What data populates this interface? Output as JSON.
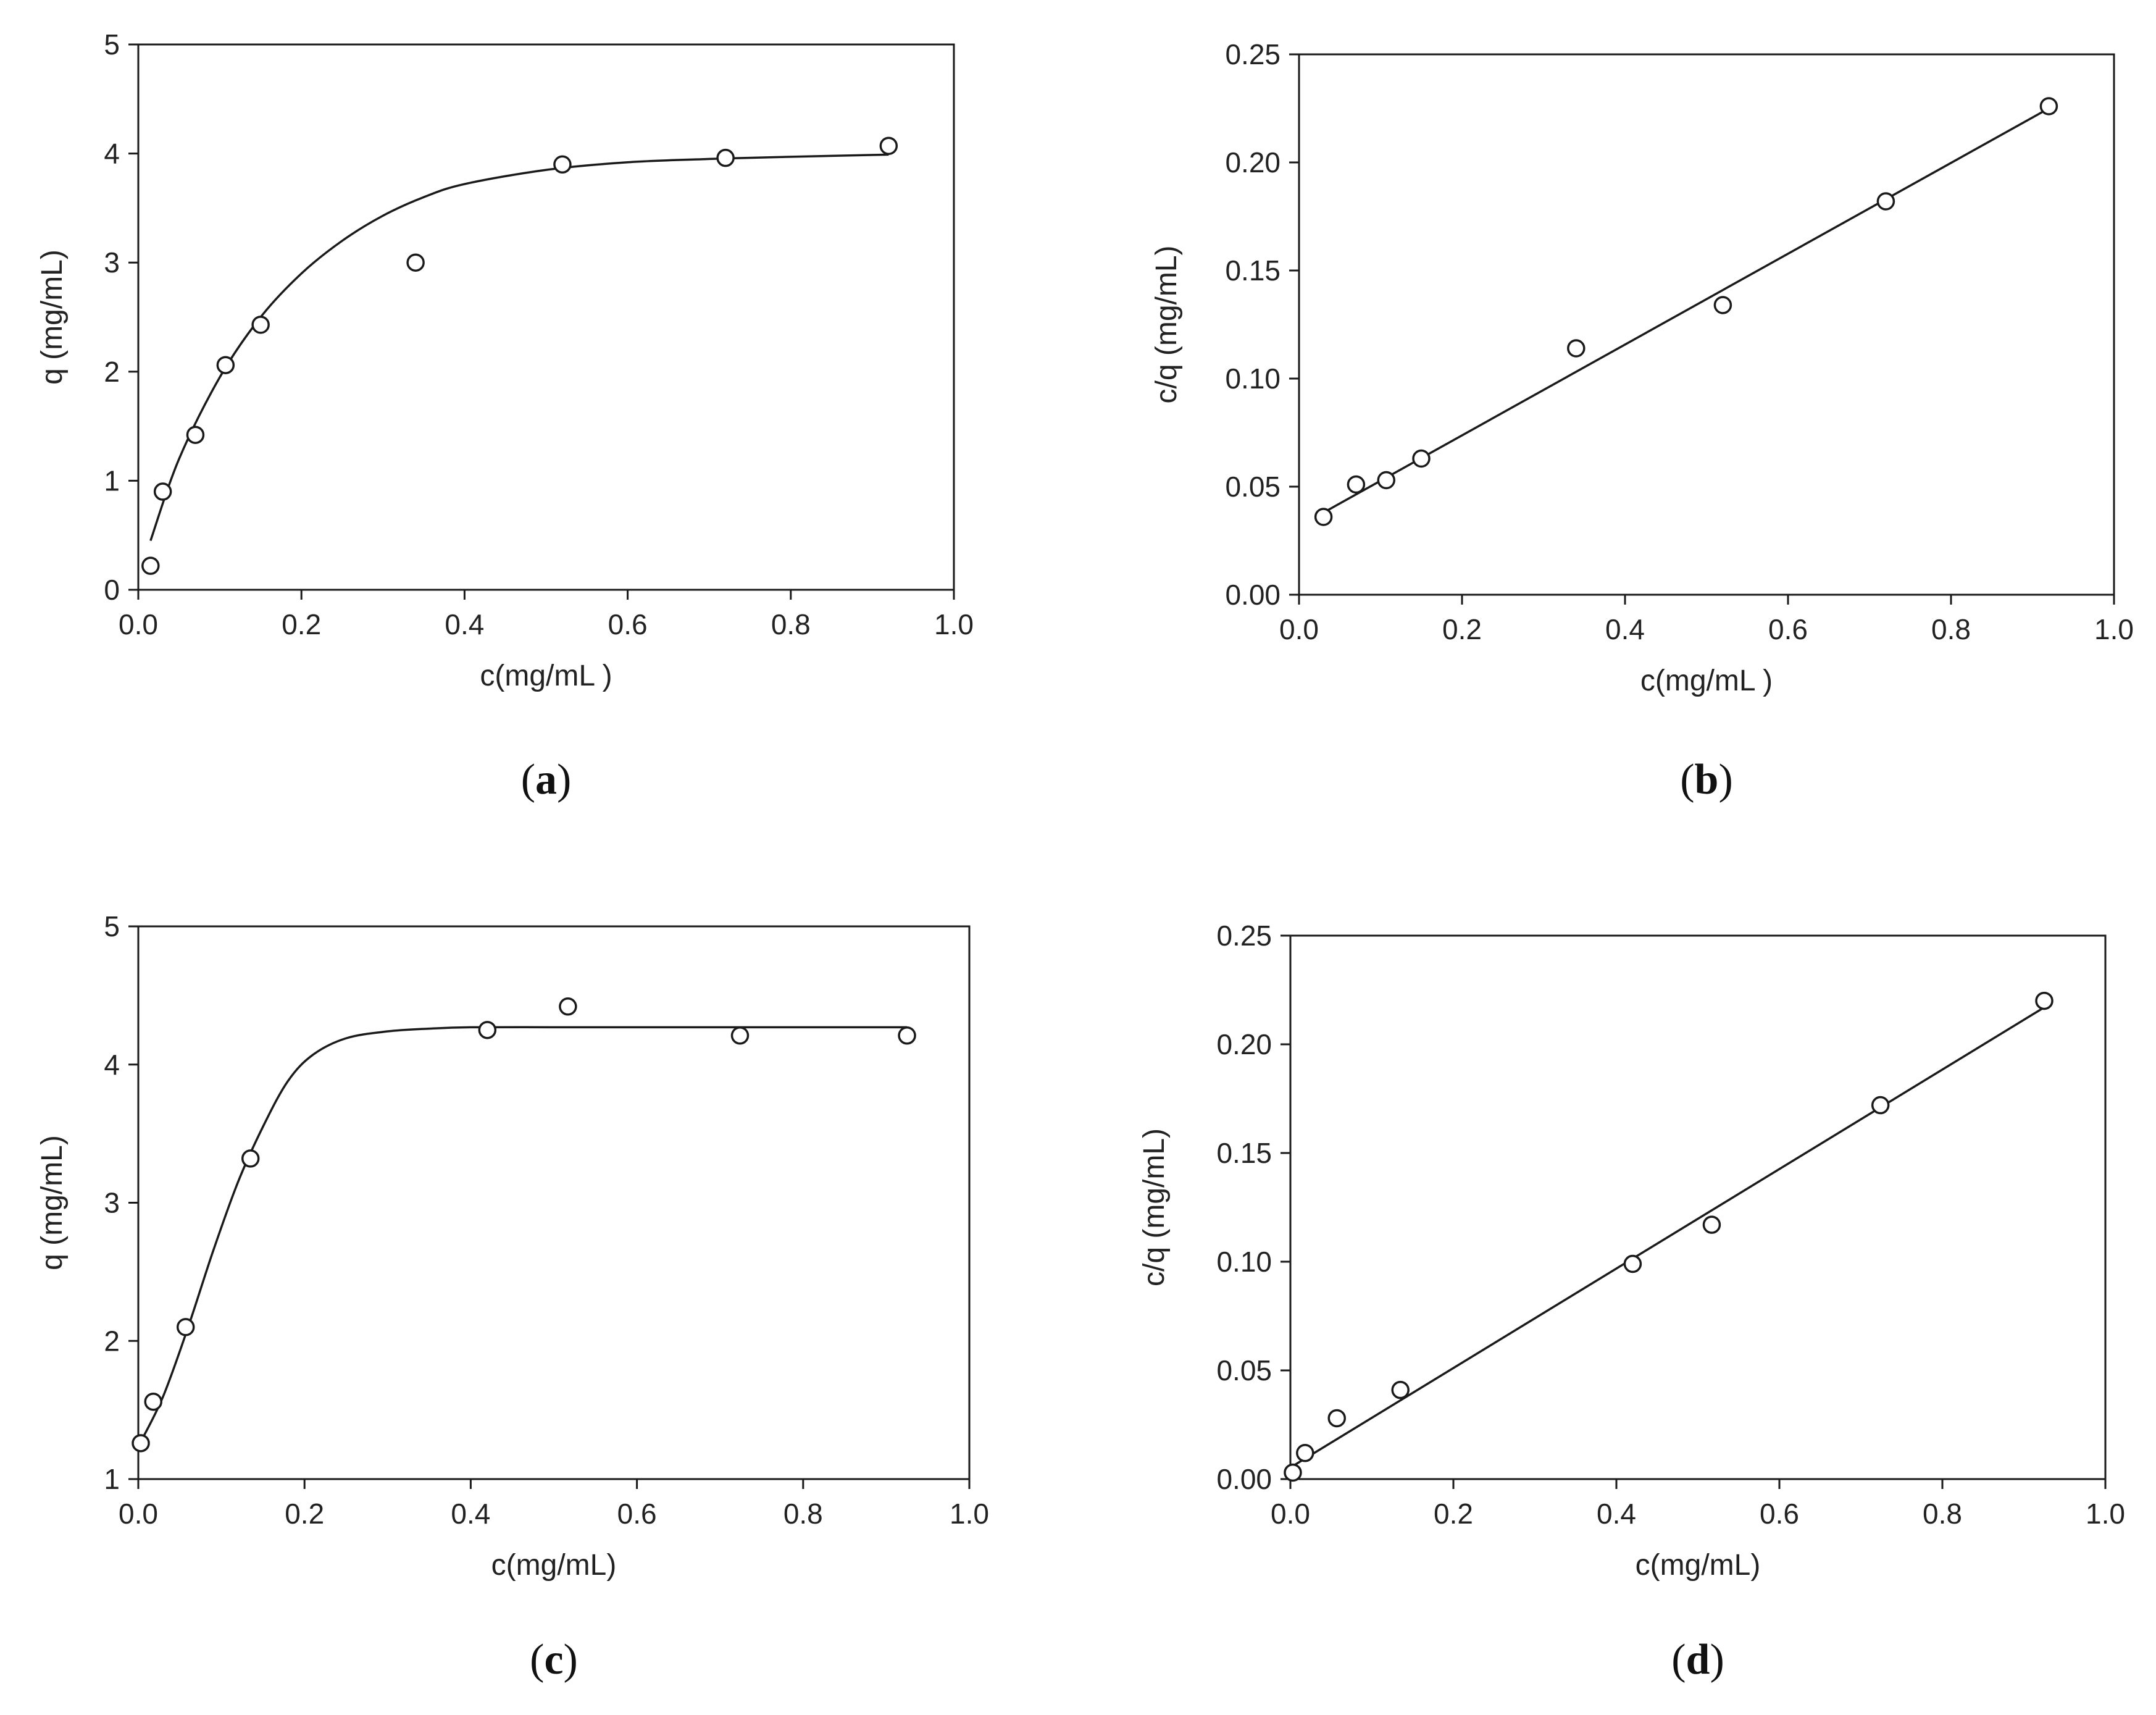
{
  "chart_data": [
    {
      "id": "a",
      "panel_label": "a",
      "type": "scatter",
      "xlabel": "c(mg/mL )",
      "ylabel": "q (mg/mL)",
      "xlim": [
        0,
        1.0
      ],
      "ylim": [
        0,
        5
      ],
      "xticks": [
        "0.0",
        "0.2",
        "0.4",
        "0.6",
        "0.8",
        "1.0"
      ],
      "yticks": [
        "0",
        "1",
        "2",
        "3",
        "4",
        "5"
      ],
      "points": {
        "x": [
          0.015,
          0.03,
          0.07,
          0.107,
          0.15,
          0.34,
          0.52,
          0.72,
          0.92
        ],
        "y": [
          0.22,
          0.9,
          1.42,
          2.06,
          2.43,
          3.0,
          3.9,
          3.96,
          4.07
        ]
      },
      "fit": {
        "kind": "curve",
        "x": [
          0.015,
          0.05,
          0.1,
          0.15,
          0.2,
          0.25,
          0.3,
          0.35,
          0.4,
          0.5,
          0.6,
          0.7,
          0.8,
          0.92
        ],
        "y": [
          0.45,
          1.2,
          1.95,
          2.5,
          2.9,
          3.2,
          3.43,
          3.6,
          3.72,
          3.85,
          3.92,
          3.95,
          3.97,
          3.99
        ]
      }
    },
    {
      "id": "b",
      "panel_label": "b",
      "type": "scatter",
      "xlabel": "c(mg/mL )",
      "ylabel": "c/q (mg/mL)",
      "xlim": [
        0,
        1.0
      ],
      "ylim": [
        0,
        0.25
      ],
      "xticks": [
        "0.0",
        "0.2",
        "0.4",
        "0.6",
        "0.8",
        "1.0"
      ],
      "yticks": [
        "0.00",
        "0.05",
        "0.10",
        "0.15",
        "0.20",
        "0.25"
      ],
      "points": {
        "x": [
          0.03,
          0.07,
          0.107,
          0.15,
          0.34,
          0.52,
          0.72,
          0.92
        ],
        "y": [
          0.036,
          0.051,
          0.053,
          0.063,
          0.114,
          0.134,
          0.182,
          0.226
        ]
      },
      "fit": {
        "kind": "line",
        "x": [
          0.03,
          0.92
        ],
        "y": [
          0.038,
          0.225
        ]
      }
    },
    {
      "id": "c",
      "panel_label": "c",
      "type": "scatter",
      "xlabel": "c(mg/mL)",
      "ylabel": "q (mg/mL)",
      "xlim": [
        0,
        1.0
      ],
      "ylim": [
        1,
        5
      ],
      "xticks": [
        "0.0",
        "0.2",
        "0.4",
        "0.6",
        "0.8",
        "1.0"
      ],
      "yticks": [
        "1",
        "2",
        "3",
        "4",
        "5"
      ],
      "points": {
        "x": [
          0.003,
          0.018,
          0.057,
          0.135,
          0.42,
          0.517,
          0.724,
          0.925
        ],
        "y": [
          1.26,
          1.56,
          2.1,
          3.32,
          4.25,
          4.42,
          4.21,
          4.21
        ]
      },
      "fit": {
        "kind": "curve",
        "x": [
          0.003,
          0.03,
          0.06,
          0.09,
          0.12,
          0.15,
          0.18,
          0.21,
          0.25,
          0.3,
          0.35,
          0.4,
          0.5,
          0.6,
          0.7,
          0.8,
          0.925
        ],
        "y": [
          1.27,
          1.6,
          2.1,
          2.65,
          3.15,
          3.55,
          3.88,
          4.07,
          4.19,
          4.24,
          4.26,
          4.27,
          4.27,
          4.27,
          4.27,
          4.27,
          4.27
        ]
      }
    },
    {
      "id": "d",
      "panel_label": "d",
      "type": "scatter",
      "xlabel": "c(mg/mL)",
      "ylabel": "c/q (mg/mL)",
      "xlim": [
        0,
        1.0
      ],
      "ylim": [
        0,
        0.25
      ],
      "xticks": [
        "0.0",
        "0.2",
        "0.4",
        "0.6",
        "0.8",
        "1.0"
      ],
      "yticks": [
        "0.00",
        "0.05",
        "0.10",
        "0.15",
        "0.20",
        "0.25"
      ],
      "points": {
        "x": [
          0.003,
          0.018,
          0.057,
          0.135,
          0.42,
          0.517,
          0.724,
          0.925
        ],
        "y": [
          0.003,
          0.012,
          0.028,
          0.041,
          0.099,
          0.117,
          0.172,
          0.22
        ]
      },
      "fit": {
        "kind": "line",
        "x": [
          0.003,
          0.925
        ],
        "y": [
          0.006,
          0.217
        ]
      }
    }
  ]
}
